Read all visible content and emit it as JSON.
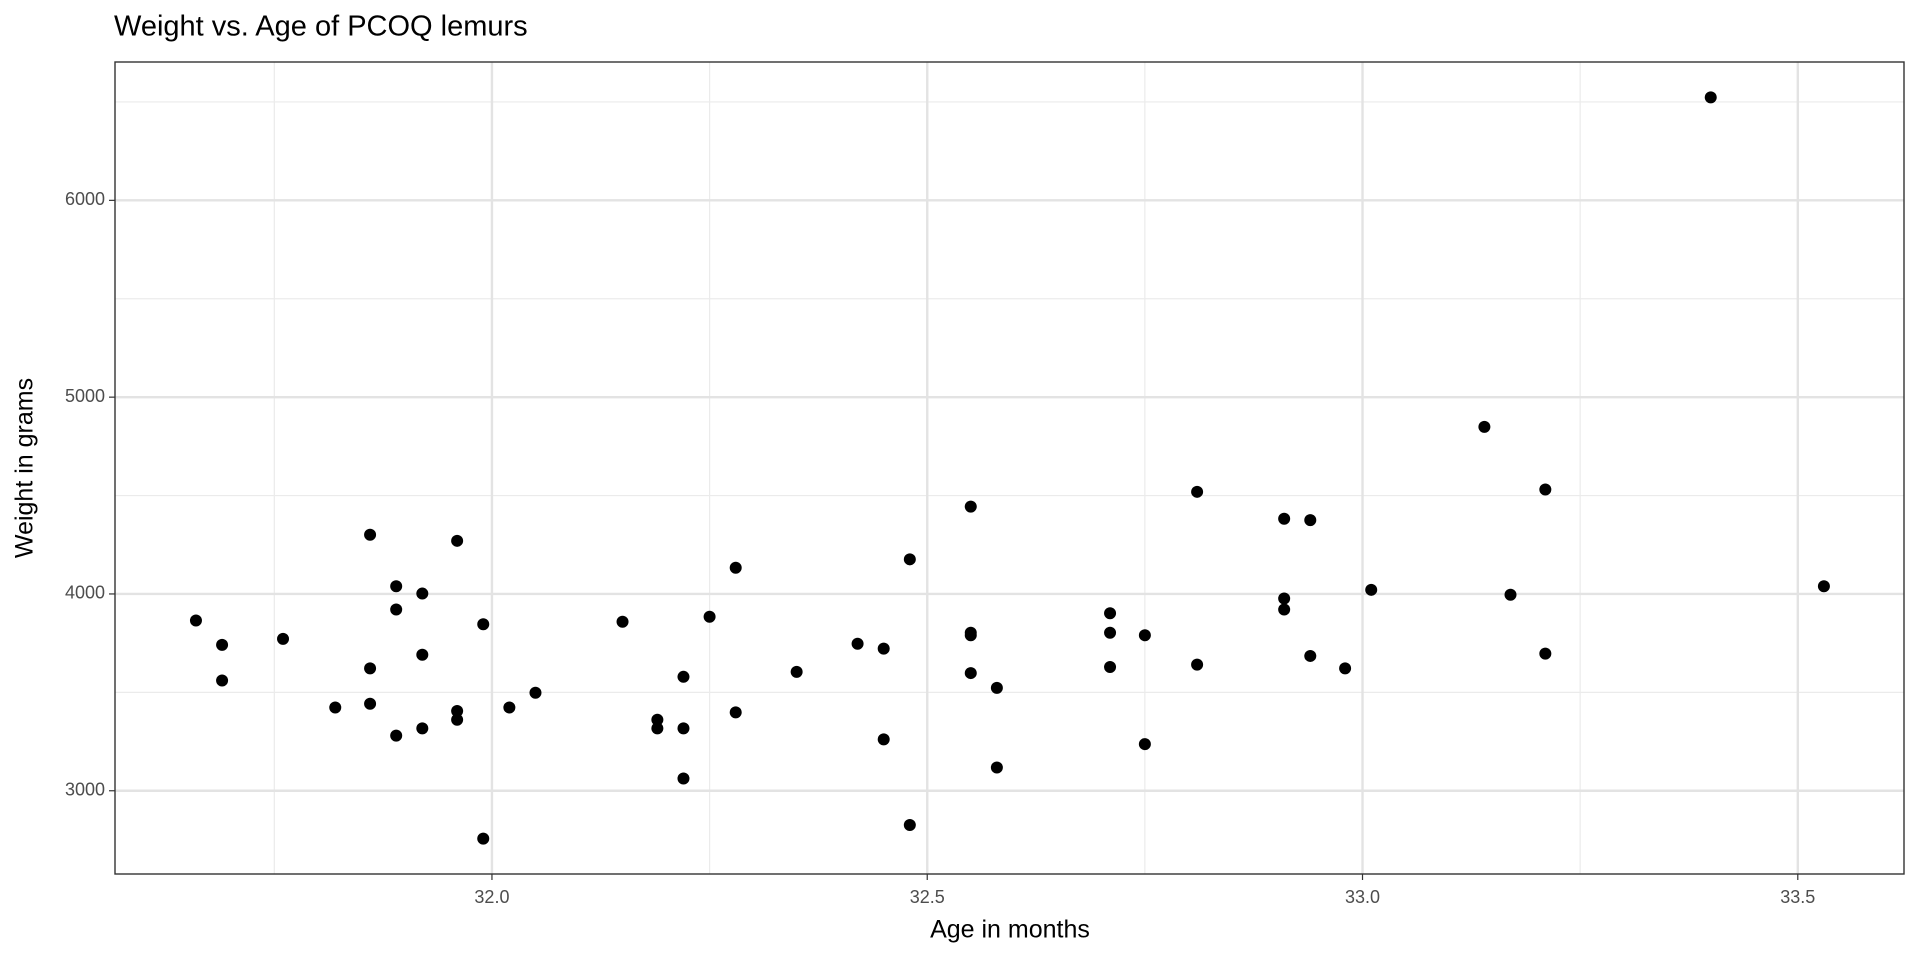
{
  "chart_data": {
    "type": "scatter",
    "title": "Weight vs. Age of PCOQ lemurs",
    "x_label": "Age in months",
    "y_label": "Weight in grams",
    "color": "#000000",
    "grid": true,
    "xlim": [
      31.567,
      33.622
    ],
    "ylim": [
      2577,
      6703
    ],
    "xticks": [
      {
        "value": 32,
        "label": "32.0"
      },
      32.5,
      {
        "value": 33,
        "label": "33.0"
      },
      33.5
    ],
    "yticks": [
      3000,
      4000,
      5000,
      6000
    ],
    "x_minor_ticks": [
      31.75,
      32.25,
      32.75,
      33.25
    ],
    "y_minor_ticks": [
      3500,
      4500,
      5500,
      6500
    ],
    "x": [
      31.66,
      31.69,
      31.69,
      31.76,
      31.82,
      31.86,
      31.86,
      31.86,
      31.89,
      31.89,
      31.89,
      31.92,
      31.92,
      31.92,
      31.96,
      31.96,
      31.96,
      31.99,
      31.99,
      32.02,
      32.05,
      32.15,
      32.19,
      32.19,
      32.22,
      32.22,
      32.22,
      32.25,
      32.28,
      32.28,
      32.35,
      32.42,
      32.45,
      32.45,
      32.48,
      32.48,
      32.55,
      32.55,
      32.55,
      32.55,
      32.58,
      32.58,
      32.71,
      32.71,
      32.71,
      32.75,
      32.75,
      32.81,
      32.81,
      32.91,
      32.91,
      32.91,
      32.94,
      32.94,
      32.98,
      33.01,
      33.14,
      33.17,
      33.21,
      33.21,
      33.4,
      33.53
    ],
    "values": [
      3865,
      3741,
      3560,
      3772,
      3423,
      4301,
      3622,
      3442,
      4039,
      3921,
      3280,
      4002,
      3691,
      3317,
      4270,
      3405,
      3361,
      3846,
      2757,
      3423,
      3498,
      3859,
      3361,
      3317,
      3579,
      3317,
      3062,
      3884,
      4133,
      3398,
      3604,
      3747,
      3722,
      3261,
      4176,
      2826,
      4444,
      3803,
      3790,
      3598,
      3523,
      3118,
      3902,
      3803,
      3629,
      3790,
      3237,
      4519,
      3641,
      4382,
      3977,
      3921,
      4375,
      3685,
      3622,
      4021,
      4849,
      3996,
      4531,
      3697,
      6523,
      4039
    ]
  }
}
